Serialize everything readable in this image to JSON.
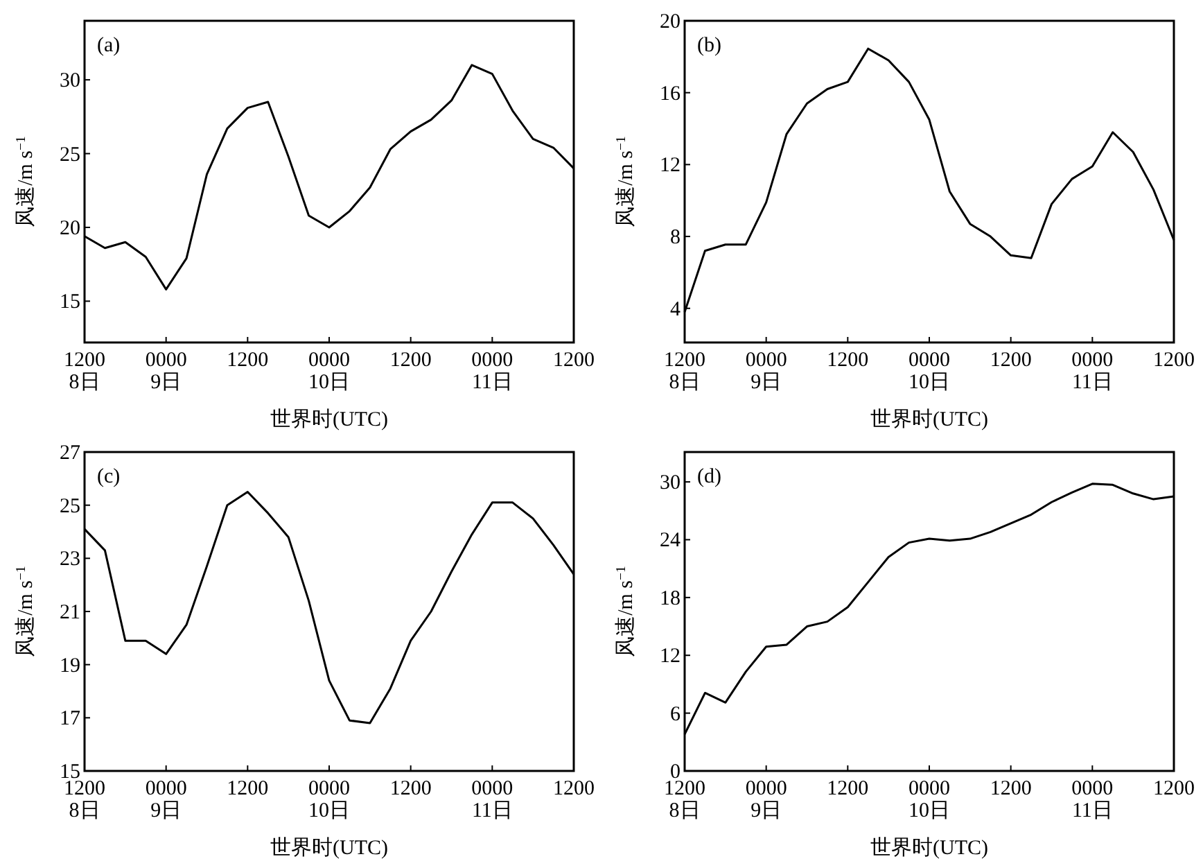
{
  "chart_data": [
    {
      "type": "line",
      "xlabel": "世界时(UTC)",
      "ylabel": "风速/m s$^{−1}$",
      "annotations": [
        "(a)"
      ],
      "ylim": [
        12.2,
        34
      ],
      "yticks": [
        15,
        20,
        25,
        30
      ],
      "categories": [
        "1200\n8日",
        null,
        null,
        null,
        "0000\n9日",
        null,
        null,
        null,
        "1200",
        null,
        null,
        null,
        "0000\n10日",
        null,
        null,
        null,
        "1200",
        null,
        null,
        null,
        "0000\n11日",
        null,
        null,
        null,
        "1200"
      ],
      "series": [
        {
          "color": "#000000",
          "values": [
            19.4,
            18.6,
            19.0,
            18.0,
            15.8,
            17.9,
            23.6,
            26.7,
            28.1,
            28.5,
            24.8,
            20.8,
            20.0,
            21.1,
            22.7,
            25.3,
            26.5,
            27.3,
            28.6,
            31.0,
            30.4,
            27.9,
            26.0,
            25.4,
            24.0
          ]
        }
      ]
    },
    {
      "type": "line",
      "xlabel": "世界时(UTC)",
      "ylabel": "风速/m s$^{−1}$",
      "annotations": [
        "(b)"
      ],
      "ylim": [
        2.1,
        20
      ],
      "yticks": [
        4,
        8,
        12,
        16,
        20
      ],
      "categories": [
        "1200\n8日",
        null,
        null,
        null,
        "0000\n9日",
        null,
        null,
        null,
        "1200",
        null,
        null,
        null,
        "0000\n10日",
        null,
        null,
        null,
        "1200",
        null,
        null,
        null,
        "0000\n11日",
        null,
        null,
        null,
        "1200"
      ],
      "series": [
        {
          "color": "#000000",
          "values": [
            3.8,
            7.2,
            7.55,
            7.55,
            9.9,
            13.7,
            15.4,
            16.2,
            16.6,
            18.45,
            17.8,
            16.6,
            14.5,
            10.5,
            8.7,
            8.0,
            6.95,
            6.8,
            9.8,
            11.2,
            11.9,
            13.8,
            12.7,
            10.6,
            7.8
          ]
        }
      ]
    },
    {
      "type": "line",
      "xlabel": "世界时(UTC)",
      "ylabel": "风速/m s$^{−1}$",
      "annotations": [
        "(c)"
      ],
      "ylim": [
        15,
        27
      ],
      "yticks": [
        15,
        17,
        19,
        21,
        23,
        25,
        27
      ],
      "categories": [
        "1200\n8日",
        null,
        null,
        null,
        "0000\n9日",
        null,
        null,
        null,
        "1200",
        null,
        null,
        null,
        "0000\n10日",
        null,
        null,
        null,
        "1200",
        null,
        null,
        null,
        "0000\n11日",
        null,
        null,
        null,
        "1200"
      ],
      "series": [
        {
          "color": "#000000",
          "values": [
            24.1,
            23.3,
            19.9,
            19.9,
            19.4,
            20.5,
            22.7,
            25.0,
            25.5,
            24.7,
            23.8,
            21.4,
            18.4,
            16.9,
            16.8,
            18.1,
            19.9,
            21.0,
            22.5,
            23.9,
            25.1,
            25.1,
            24.5,
            23.5,
            22.4
          ]
        }
      ]
    },
    {
      "type": "line",
      "xlabel": "世界时(UTC)",
      "ylabel": "风速/m s$^{−1}$",
      "annotations": [
        "(d)"
      ],
      "ylim": [
        0,
        33.1
      ],
      "yticks": [
        0,
        6,
        12,
        18,
        24,
        30
      ],
      "categories": [
        "1200\n8日",
        null,
        null,
        null,
        "0000\n9日",
        null,
        null,
        null,
        "1200",
        null,
        null,
        null,
        "0000\n10日",
        null,
        null,
        null,
        "1200",
        null,
        null,
        null,
        "0000\n11日",
        null,
        null,
        null,
        "1200"
      ],
      "series": [
        {
          "color": "#000000",
          "values": [
            3.8,
            8.1,
            7.1,
            10.3,
            12.9,
            13.1,
            15.0,
            15.5,
            17.0,
            19.6,
            22.2,
            23.7,
            24.1,
            23.9,
            24.1,
            24.8,
            25.7,
            26.6,
            27.9,
            28.9,
            29.8,
            29.7,
            28.8,
            28.2,
            28.5
          ]
        }
      ]
    }
  ]
}
